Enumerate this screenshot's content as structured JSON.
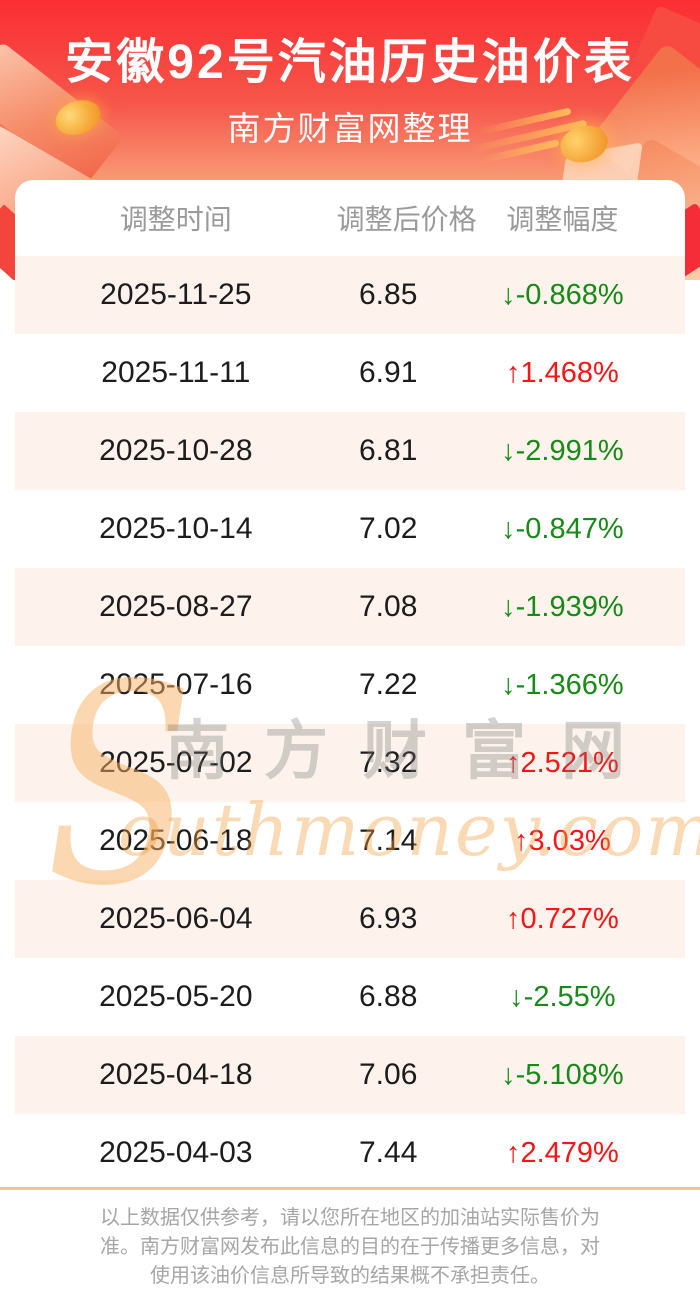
{
  "header": {
    "title": "安徽92号汽油历史油价表",
    "subtitle": "南方财富网整理"
  },
  "table": {
    "columns": [
      "调整时间",
      "调整后价格",
      "调整幅度"
    ],
    "rows": [
      {
        "date": "2025-11-25",
        "price": "6.85",
        "change": "↓-0.868%",
        "direction": "down"
      },
      {
        "date": "2025-11-11",
        "price": "6.91",
        "change": "↑1.468%",
        "direction": "up"
      },
      {
        "date": "2025-10-28",
        "price": "6.81",
        "change": "↓-2.991%",
        "direction": "down"
      },
      {
        "date": "2025-10-14",
        "price": "7.02",
        "change": "↓-0.847%",
        "direction": "down"
      },
      {
        "date": "2025-08-27",
        "price": "7.08",
        "change": "↓-1.939%",
        "direction": "down"
      },
      {
        "date": "2025-07-16",
        "price": "7.22",
        "change": "↓-1.366%",
        "direction": "down"
      },
      {
        "date": "2025-07-02",
        "price": "7.32",
        "change": "↑2.521%",
        "direction": "up"
      },
      {
        "date": "2025-06-18",
        "price": "7.14",
        "change": "↑3.03%",
        "direction": "up"
      },
      {
        "date": "2025-06-04",
        "price": "6.93",
        "change": "↑0.727%",
        "direction": "up"
      },
      {
        "date": "2025-05-20",
        "price": "6.88",
        "change": "↓-2.55%",
        "direction": "down"
      },
      {
        "date": "2025-04-18",
        "price": "7.06",
        "change": "↓-5.108%",
        "direction": "down"
      },
      {
        "date": "2025-04-03",
        "price": "7.44",
        "change": "↑2.479%",
        "direction": "up"
      }
    ]
  },
  "chart_data": {
    "type": "table",
    "title": "安徽92号汽油历史油价表",
    "subtitle": "南方财富网整理",
    "columns": [
      "调整时间",
      "调整后价格",
      "调整幅度"
    ],
    "rows": [
      {
        "date": "2025-11-25",
        "price": 6.85,
        "change_pct": -0.868
      },
      {
        "date": "2025-11-11",
        "price": 6.91,
        "change_pct": 1.468
      },
      {
        "date": "2025-10-28",
        "price": 6.81,
        "change_pct": -2.991
      },
      {
        "date": "2025-10-14",
        "price": 7.02,
        "change_pct": -0.847
      },
      {
        "date": "2025-08-27",
        "price": 7.08,
        "change_pct": -1.939
      },
      {
        "date": "2025-07-16",
        "price": 7.22,
        "change_pct": -1.366
      },
      {
        "date": "2025-07-02",
        "price": 7.32,
        "change_pct": 2.521
      },
      {
        "date": "2025-06-18",
        "price": 7.14,
        "change_pct": 3.03
      },
      {
        "date": "2025-06-04",
        "price": 6.93,
        "change_pct": 0.727
      },
      {
        "date": "2025-05-20",
        "price": 6.88,
        "change_pct": -2.55
      },
      {
        "date": "2025-04-18",
        "price": 7.06,
        "change_pct": -5.108
      },
      {
        "date": "2025-04-03",
        "price": 7.44,
        "change_pct": 2.479
      }
    ]
  },
  "watermark": {
    "initial": "S",
    "cn": "南方财富网",
    "en": "outhmoney.com"
  },
  "footer": {
    "lines": [
      "以上数据仅供参考，请以您所在地区的加油站实际售价为",
      "准。南方财富网发布此信息的目的在于传播更多信息，对",
      "使用该油价信息所导致的结果概不承担责任。"
    ]
  },
  "colors": {
    "up_red": "#fa1414",
    "down_green": "#178a17",
    "row_alt_bg": "#fdf3ec",
    "divider": "#f6c28c",
    "header_gradient_top": "#fb2e33",
    "header_gradient_bottom": "#f9a87d"
  }
}
